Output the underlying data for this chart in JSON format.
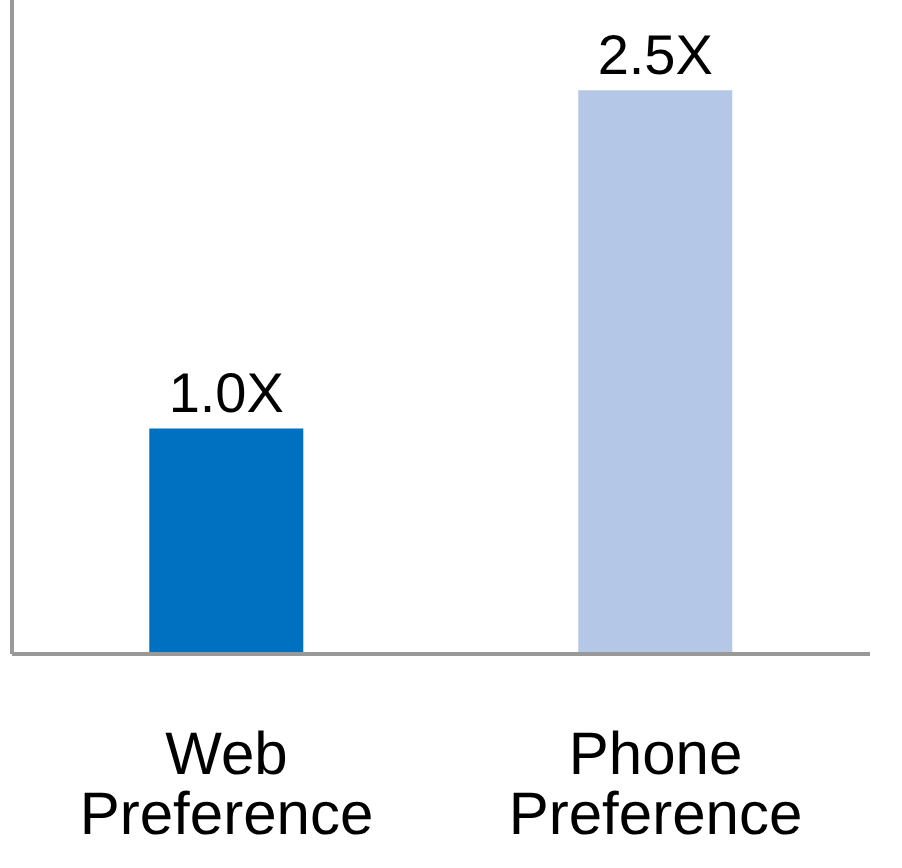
{
  "chart_data": {
    "type": "bar",
    "categories": [
      "Web Preference",
      "Phone Preference"
    ],
    "values": [
      1.0,
      2.5
    ],
    "colors": [
      "#0070c0",
      "#b4c7e7"
    ],
    "value_labels": [
      "1.0X",
      "2.5X"
    ],
    "ylim": [
      0,
      2.9
    ],
    "tick_labels": "x"
  }
}
